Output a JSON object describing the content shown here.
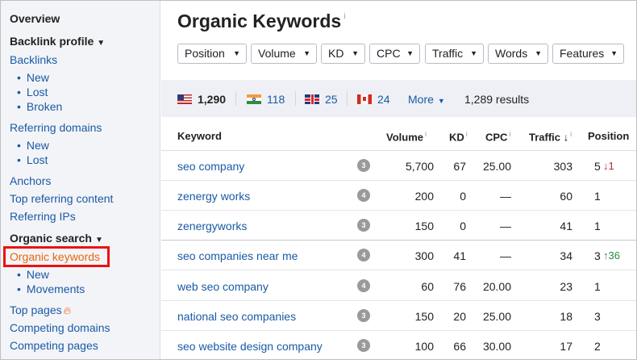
{
  "sidebar": {
    "overview": "Overview",
    "backlink_profile": "Backlink profile",
    "backlinks": "Backlinks",
    "backlinks_sub": [
      "New",
      "Lost",
      "Broken"
    ],
    "referring_domains": "Referring domains",
    "referring_domains_sub": [
      "New",
      "Lost"
    ],
    "anchors": "Anchors",
    "top_referring_content": "Top referring content",
    "referring_ips": "Referring IPs",
    "organic_search": "Organic search",
    "organic_keywords": "Organic keywords",
    "organic_sub": [
      "New",
      "Movements"
    ],
    "top_pages": "Top pages",
    "competing_domains": "Competing domains",
    "competing_pages": "Competing pages"
  },
  "main": {
    "title": "Organic Keywords",
    "info_mark": "i",
    "filters": [
      "Position",
      "Volume",
      "KD",
      "CPC",
      "Traffic",
      "Words",
      "Features"
    ],
    "countries": [
      {
        "code": "us",
        "count": "1,290"
      },
      {
        "code": "in",
        "count": "118"
      },
      {
        "code": "gb",
        "count": "25"
      },
      {
        "code": "ca",
        "count": "24"
      }
    ],
    "more_label": "More",
    "results": "1,289 results",
    "columns": {
      "keyword": "Keyword",
      "volume": "Volume",
      "kd": "KD",
      "cpc": "CPC",
      "traffic": "Traffic",
      "position": "Position"
    },
    "rows": [
      {
        "keyword": "seo company",
        "sf": "3",
        "volume": "5,700",
        "kd": "67",
        "cpc": "25.00",
        "traffic": "303",
        "position": "5",
        "change": "1",
        "dir": "down"
      },
      {
        "keyword": "zenergy works",
        "sf": "4",
        "volume": "200",
        "kd": "0",
        "cpc": "—",
        "traffic": "60",
        "position": "1",
        "change": "",
        "dir": ""
      },
      {
        "keyword": "zenergyworks",
        "sf": "3",
        "volume": "150",
        "kd": "0",
        "cpc": "—",
        "traffic": "41",
        "position": "1",
        "change": "",
        "dir": ""
      },
      {
        "keyword": "seo companies near me",
        "sf": "4",
        "volume": "300",
        "kd": "41",
        "cpc": "—",
        "traffic": "34",
        "position": "3",
        "change": "36",
        "dir": "up"
      },
      {
        "keyword": "web seo company",
        "sf": "4",
        "volume": "60",
        "kd": "76",
        "cpc": "20.00",
        "traffic": "23",
        "position": "1",
        "change": "",
        "dir": ""
      },
      {
        "keyword": "national seo companies",
        "sf": "3",
        "volume": "150",
        "kd": "20",
        "cpc": "25.00",
        "traffic": "18",
        "position": "3",
        "change": "",
        "dir": ""
      },
      {
        "keyword": "seo website design company",
        "sf": "3",
        "volume": "100",
        "kd": "66",
        "cpc": "30.00",
        "traffic": "17",
        "position": "2",
        "change": "",
        "dir": ""
      }
    ]
  }
}
